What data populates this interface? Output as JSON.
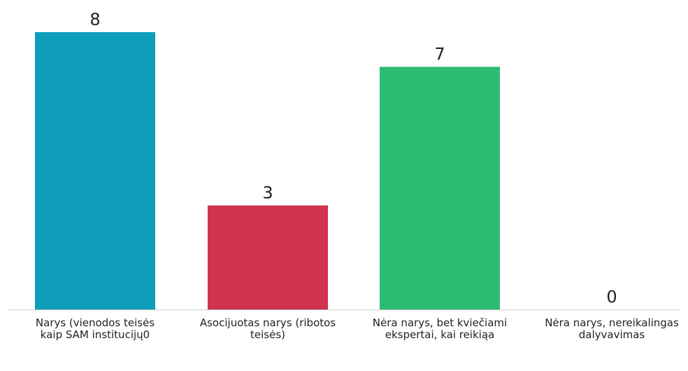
{
  "chart_data": {
    "type": "bar",
    "categories": [
      "Narys (vienodos teisės kaip SAM institucijų0",
      "Asocijuotas narys (ribotos teisės)",
      "Nėra narys, bet kviečiami ekspertai, kai reikiąa",
      "Nėra narys, nereikalingas dalyvavimas"
    ],
    "values": [
      8,
      3,
      7,
      0
    ],
    "value_labels": [
      "8",
      "3",
      "7",
      "0"
    ],
    "colors": [
      "#0e9dbb",
      "#d03250",
      "#2cbb73",
      "#cccccc"
    ],
    "axis_color": "#cccccc",
    "ylim": [
      0,
      8
    ],
    "grid": false,
    "legend": "none"
  }
}
